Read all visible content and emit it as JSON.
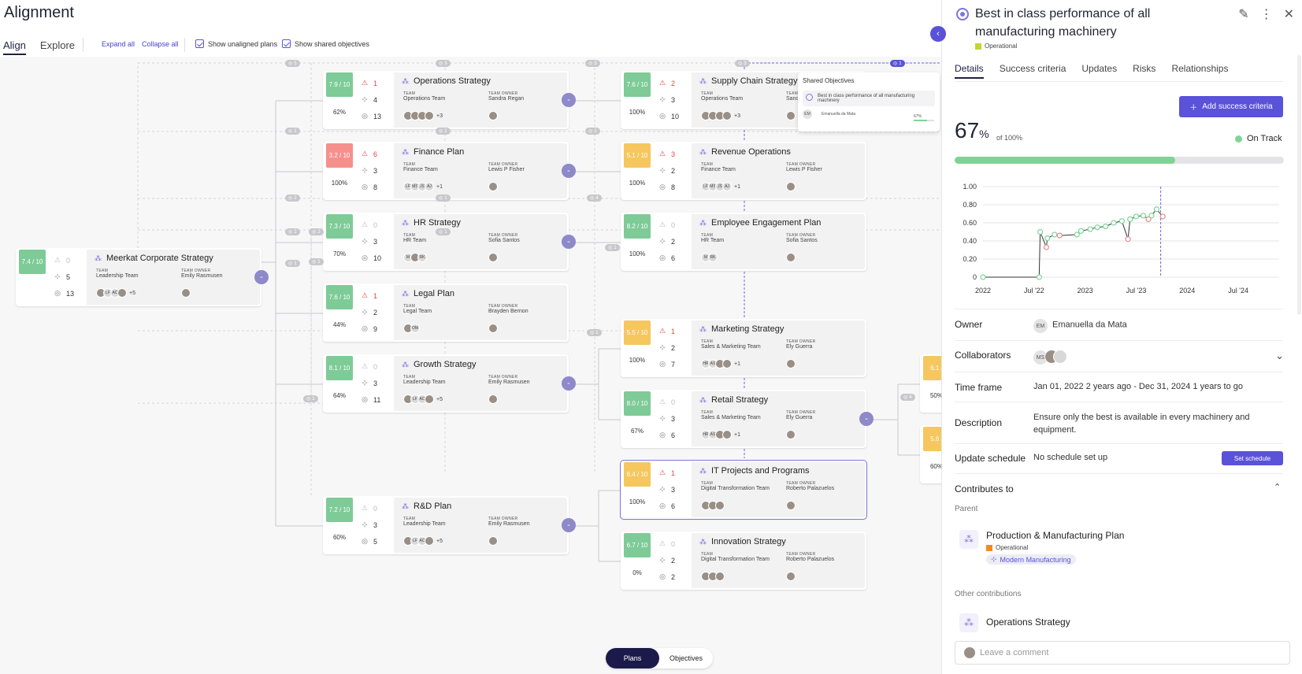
{
  "app": {
    "title": "Alignment",
    "tabs": [
      "Align",
      "Explore"
    ],
    "expand_all": "Expand all",
    "collapse_all": "Collapse all",
    "show_unaligned": "Show unaligned plans",
    "show_shared": "Show shared objectives"
  },
  "labels": {
    "team": "TEAM",
    "team_owner": "TEAM OWNER"
  },
  "colors": {
    "green": "#7ecb97",
    "red": "#f5908d",
    "yellow": "#f5c75e",
    "accent": "#5a52d8"
  },
  "cards": [
    {
      "id": "meerkat",
      "title": "Meerkat Corporate Strategy",
      "score": "7.4 / 10",
      "score_color": "green",
      "pct": "",
      "risks": "0",
      "objectives": "5",
      "targets": "13",
      "team": "Leadership Team",
      "owner": "Emily Rasmusen",
      "avatars": [
        "",
        "LF",
        "AC",
        ""
      ],
      "more": "+5"
    },
    {
      "id": "operations",
      "title": "Operations Strategy",
      "score": "7.9 / 10",
      "score_color": "green",
      "pct": "62%",
      "risks": "1",
      "objectives": "4",
      "targets": "13",
      "team": "Operations Team",
      "owner": "Sandra Regan",
      "avatars": [
        "",
        "",
        "",
        ""
      ],
      "more": "+3"
    },
    {
      "id": "finance",
      "title": "Finance Plan",
      "score": "3.2 / 10",
      "score_color": "red",
      "pct": "100%",
      "risks": "6",
      "objectives": "3",
      "targets": "8",
      "team": "Finance Team",
      "owner": "Lewis P Fisher",
      "avatars": [
        "LF",
        "MS",
        "JS",
        "AJ"
      ],
      "more": "+1"
    },
    {
      "id": "hr",
      "title": "HR Strategy",
      "score": "7.3 / 10",
      "score_color": "green",
      "pct": "70%",
      "risks": "0",
      "objectives": "3",
      "targets": "10",
      "team": "HR Team",
      "owner": "Sofia Santos",
      "avatars": [
        "M",
        "",
        "RK"
      ],
      "more": ""
    },
    {
      "id": "legal",
      "title": "Legal Plan",
      "score": "7.6 / 10",
      "score_color": "green",
      "pct": "44%",
      "risks": "1",
      "objectives": "2",
      "targets": "9",
      "team": "Legal Team",
      "owner": "Brayden Bernon",
      "avatars": [
        "",
        "OM"
      ],
      "more": ""
    },
    {
      "id": "growth",
      "title": "Growth Strategy",
      "score": "8.1 / 10",
      "score_color": "green",
      "pct": "64%",
      "risks": "0",
      "objectives": "3",
      "targets": "11",
      "team": "Leadership Team",
      "owner": "Emily Rasmusen",
      "avatars": [
        "",
        "LF",
        "AC",
        ""
      ],
      "more": "+5"
    },
    {
      "id": "rnd",
      "title": "R&D Plan",
      "score": "7.2 / 10",
      "score_color": "green",
      "pct": "60%",
      "risks": "0",
      "objectives": "3",
      "targets": "5",
      "team": "Leadership Team",
      "owner": "Emily Rasmusen",
      "avatars": [
        "",
        "LF",
        "AC",
        ""
      ],
      "more": "+5"
    },
    {
      "id": "supply",
      "title": "Supply Chain Strategy",
      "score": "7.6 / 10",
      "score_color": "green",
      "pct": "100%",
      "risks": "2",
      "objectives": "3",
      "targets": "10",
      "team": "Operations Team",
      "owner": "Sandra Regan",
      "avatars": [
        "",
        "",
        "",
        ""
      ],
      "more": "+3"
    },
    {
      "id": "revenue",
      "title": "Revenue Operations",
      "score": "5.1 / 10",
      "score_color": "yellow",
      "pct": "100%",
      "risks": "3",
      "objectives": "2",
      "targets": "8",
      "team": "Finance Team",
      "owner": "Lewis P Fisher",
      "avatars": [
        "LF",
        "MS",
        "JS",
        "AJ"
      ],
      "more": "+1"
    },
    {
      "id": "engagement",
      "title": "Employee Engagement Plan",
      "score": "8.2 / 10",
      "score_color": "green",
      "pct": "100%",
      "risks": "0",
      "objectives": "2",
      "targets": "6",
      "team": "HR Team",
      "owner": "Sofia Santos",
      "avatars": [
        "M",
        "RK"
      ],
      "more": ""
    },
    {
      "id": "marketing",
      "title": "Marketing Strategy",
      "score": "5.5 / 10",
      "score_color": "yellow",
      "pct": "100%",
      "risks": "1",
      "objectives": "2",
      "targets": "7",
      "team": "Sales & Marketing Team",
      "owner": "Ely Guerra",
      "avatars": [
        "HR",
        "AS",
        "",
        ""
      ],
      "more": "+1"
    },
    {
      "id": "retail",
      "title": "Retail Strategy",
      "score": "8.0 / 10",
      "score_color": "green",
      "pct": "67%",
      "risks": "0",
      "objectives": "3",
      "targets": "6",
      "team": "Sales & Marketing Team",
      "owner": "Ely Guerra",
      "avatars": [
        "HR",
        "AS",
        "",
        ""
      ],
      "more": "+1"
    },
    {
      "id": "it",
      "title": "IT Projects and Programs",
      "score": "6.4 / 10",
      "score_color": "yellow",
      "pct": "100%",
      "risks": "1",
      "objectives": "3",
      "targets": "6",
      "team": "Digital Transformation Team",
      "owner": "Roberto Palazuelos",
      "avatars": [
        "",
        "",
        ""
      ],
      "more": ""
    },
    {
      "id": "innovation",
      "title": "Innovation Strategy",
      "score": "6.7 / 10",
      "score_color": "green",
      "pct": "0%",
      "risks": "0",
      "objectives": "2",
      "targets": "2",
      "team": "Digital Transformation Team",
      "owner": "Roberto Palazuelos",
      "avatars": [
        "",
        "",
        ""
      ],
      "more": ""
    },
    {
      "id": "right1",
      "title": "",
      "score": "6.1 /",
      "score_color": "yellow",
      "pct": "50%",
      "risks": "",
      "objectives": "",
      "targets": "",
      "team": "",
      "owner": "",
      "avatars": [],
      "more": ""
    },
    {
      "id": "right2",
      "title": "",
      "score": "5.6 /",
      "score_color": "yellow",
      "pct": "60%",
      "risks": "",
      "objectives": "",
      "targets": "",
      "team": "",
      "owner": "",
      "avatars": [],
      "more": ""
    }
  ],
  "badges": [
    "5",
    "3",
    "3",
    "3",
    "1",
    "1",
    "1",
    "1",
    "2",
    "1",
    "4",
    "2",
    "2",
    "1",
    "1",
    "1",
    "1",
    "1",
    "4",
    "1"
  ],
  "shared": {
    "title": "Shared Objectives",
    "item": "Best in class performance of all manufacturing machinery",
    "owner_initials": "EM",
    "owner": "Emanuella da Mata",
    "pct": "67%"
  },
  "bottom": {
    "plans": "Plans",
    "objectives": "Objectives"
  },
  "panel": {
    "title": "Best in class performance of all manufacturing machinery",
    "type": "Operational",
    "type_color": "#c3d531",
    "tabs": [
      "Details",
      "Success criteria",
      "Updates",
      "Risks",
      "Relationships"
    ],
    "add_button": "Add success criteria",
    "progress_value": "67",
    "progress_unit": "%",
    "progress_of": "of 100%",
    "progress_fraction": 0.67,
    "status": "On Track",
    "owner_label": "Owner",
    "owner_initials": "EM",
    "owner": "Emanuella da Mata",
    "collab_label": "Collaborators",
    "collab_initials": "MS",
    "time_label": "Time frame",
    "time_value": "Jan 01, 2022 2 years ago - Dec 31, 2024 1 years to go",
    "desc_label": "Description",
    "desc_value": "Ensure only the best is available in every machinery and equipment.",
    "sched_label": "Update schedule",
    "sched_value": "No schedule set up",
    "sched_button": "Set schedule",
    "contributes": "Contributes to",
    "parent_label": "Parent",
    "parent": {
      "title": "Production & Manufacturing Plan",
      "type": "Operational",
      "type_color": "#f08a24",
      "tag": "Modern Manufacturing"
    },
    "other_label": "Other contributions",
    "other": {
      "title": "Operations Strategy"
    },
    "comment_placeholder": "Leave a comment"
  },
  "chart_data": {
    "type": "line",
    "title": "",
    "x_ticks": [
      "2022",
      "Jul '22",
      "2023",
      "Jul '23",
      "2024",
      "Jul '24"
    ],
    "y_ticks": [
      "1.00",
      "0.80",
      "0.60",
      "0.40",
      "0.20",
      "0"
    ],
    "ylim": [
      0,
      1
    ],
    "x_range": [
      2022.0,
      2024.9
    ],
    "marker_x": 2023.74,
    "series": [
      {
        "name": "progress",
        "points": [
          [
            2022.0,
            0.0
          ],
          [
            2022.55,
            0.0
          ],
          [
            2022.56,
            0.5
          ],
          [
            2022.62,
            0.33
          ],
          [
            2022.63,
            0.43
          ],
          [
            2022.7,
            0.47
          ],
          [
            2022.75,
            0.46
          ],
          [
            2022.92,
            0.47
          ],
          [
            2022.96,
            0.51
          ],
          [
            2023.05,
            0.53
          ],
          [
            2023.12,
            0.55
          ],
          [
            2023.2,
            0.56
          ],
          [
            2023.28,
            0.6
          ],
          [
            2023.36,
            0.62
          ],
          [
            2023.42,
            0.42
          ],
          [
            2023.44,
            0.64
          ],
          [
            2023.5,
            0.67
          ],
          [
            2023.57,
            0.68
          ],
          [
            2023.62,
            0.64
          ],
          [
            2023.65,
            0.68
          ],
          [
            2023.7,
            0.75
          ],
          [
            2023.76,
            0.67
          ]
        ]
      }
    ]
  }
}
